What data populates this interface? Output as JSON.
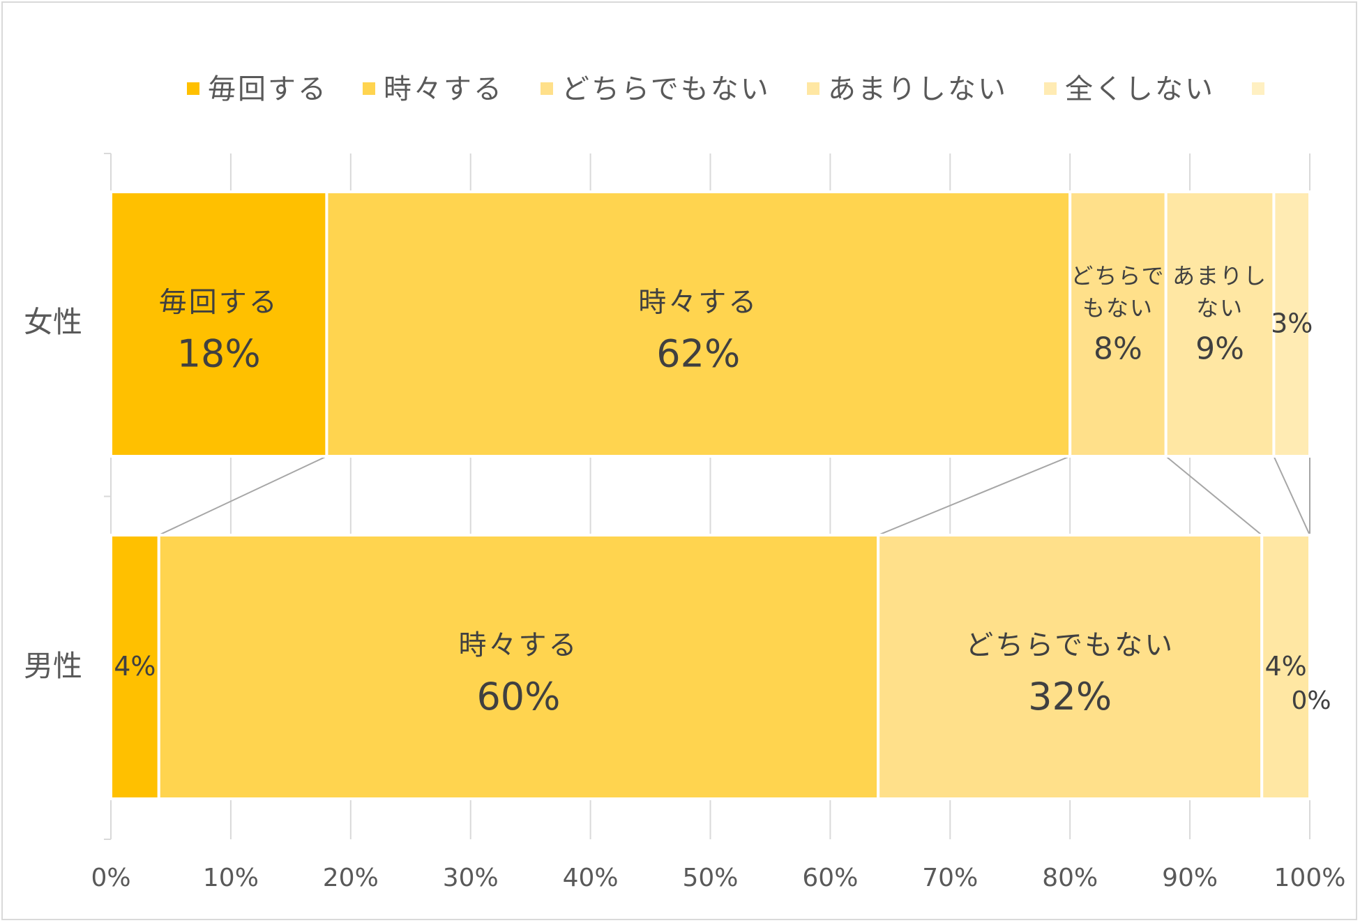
{
  "chart_data": {
    "type": "bar",
    "orientation": "horizontal",
    "stacked": "100%",
    "categories": [
      "女性",
      "男性"
    ],
    "series": [
      {
        "name": "毎回する",
        "values": [
          18,
          4
        ],
        "labels": [
          "18%",
          "4%"
        ],
        "color": "#FFC000"
      },
      {
        "name": "時々する",
        "values": [
          62,
          60
        ],
        "labels": [
          "62%",
          "60%"
        ],
        "color": "#FFD44F"
      },
      {
        "name": "どちらでもない",
        "values": [
          8,
          32
        ],
        "labels": [
          "8%",
          "32%"
        ],
        "color": "#FFE08A"
      },
      {
        "name": "あまりしない",
        "values": [
          9,
          4
        ],
        "labels": [
          "9%",
          "4%"
        ],
        "color": "#FFE7A3"
      },
      {
        "name": "全くしない",
        "values": [
          3,
          0
        ],
        "labels": [
          "3%",
          "0%"
        ],
        "color": "#FFEBB3"
      }
    ],
    "legend_extra_color": "#FFF0C2",
    "xlim": [
      0,
      100
    ],
    "x_ticks": [
      "0%",
      "10%",
      "20%",
      "30%",
      "40%",
      "50%",
      "60%",
      "70%",
      "80%",
      "90%",
      "100%"
    ],
    "grid": true,
    "series_lines": true,
    "legend_position": "top",
    "title": "",
    "xlabel": "",
    "ylabel": ""
  }
}
